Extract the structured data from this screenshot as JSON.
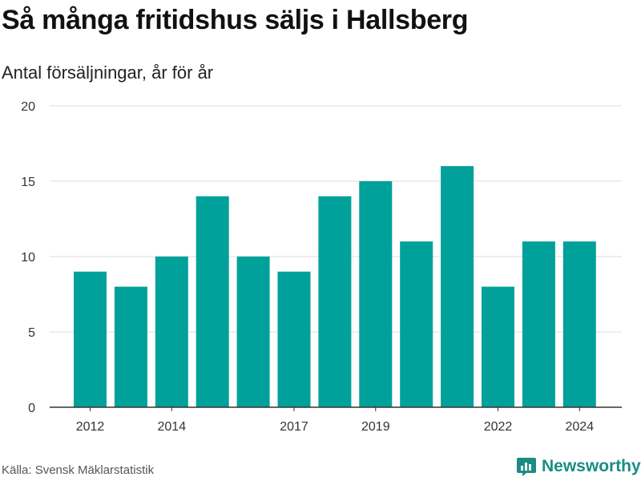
{
  "header": {
    "title": "Så många fritidshus säljs i Hallsberg",
    "subtitle": "Antal försäljningar, år för år"
  },
  "footer": {
    "source": "Källa: Svensk Mäklarstatistik",
    "brand": "Newsworthy",
    "brand_icon": "newsworthy-chart-logo-icon"
  },
  "colors": {
    "bar": "#00a19a",
    "grid": "#dcdcdc",
    "axis": "#333333",
    "brand": "#1a8c84"
  },
  "chart_data": {
    "type": "bar",
    "title": "Så många fritidshus säljs i Hallsberg",
    "subtitle": "Antal försäljningar, år för år",
    "xlabel": "",
    "ylabel": "",
    "categories": [
      "2012",
      "2013",
      "2014",
      "2015",
      "2016",
      "2017",
      "2018",
      "2019",
      "2020",
      "2021",
      "2022",
      "2023",
      "2024"
    ],
    "values": [
      9,
      8,
      10,
      14,
      10,
      9,
      14,
      15,
      11,
      16,
      8,
      11,
      11
    ],
    "x_tick_labels": [
      "2012",
      "2014",
      "2017",
      "2019",
      "2022",
      "2024"
    ],
    "y_ticks": [
      0,
      5,
      10,
      15,
      20
    ],
    "ylim": [
      0,
      20
    ],
    "grid": true,
    "legend": "none"
  }
}
